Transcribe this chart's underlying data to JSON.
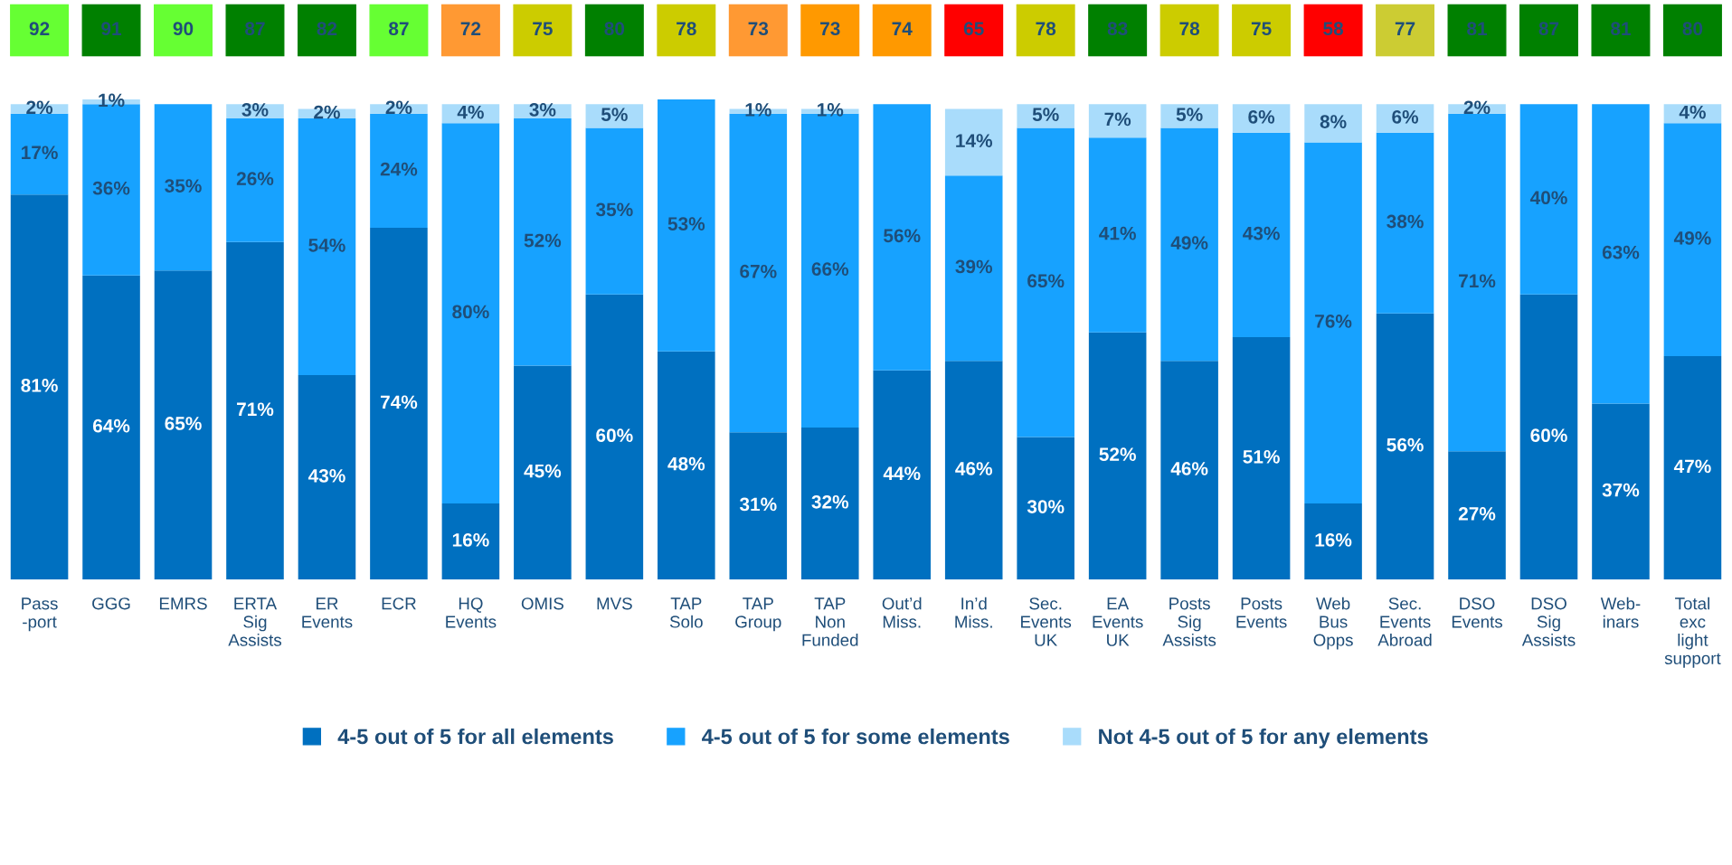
{
  "chart_data": [
    {
      "type": "other",
      "data_labels": true,
      "categories": [
        null,
        null,
        null,
        null,
        null,
        null,
        null,
        null,
        null,
        null,
        null,
        null,
        null,
        null,
        null,
        null,
        null,
        null,
        null,
        null,
        null,
        null,
        null,
        null
      ],
      "values": [
        92,
        91,
        90,
        87,
        82,
        87,
        72,
        75,
        80,
        78,
        73,
        73,
        74,
        65,
        78,
        83,
        78,
        75,
        58,
        77,
        81,
        87,
        81,
        80
      ],
      "colors": [
        "#66ff33",
        "#008000",
        "#66ff33",
        "#008000",
        "#008000",
        "#66ff33",
        "#ff9933",
        "#cccc00",
        "#008000",
        "#cccc00",
        "#ff9933",
        "#ff9900",
        "#ff9900",
        "#ff0000",
        "#cccc00",
        "#008000",
        "#cccc00",
        "#cccc00",
        "#ff0000",
        "#cccc33",
        "#008000",
        "#008000",
        "#008000",
        "#008000"
      ]
    },
    {
      "type": "bar",
      "stacked": true,
      "legend": "bottom",
      "categories": [
        "Pass\n-port",
        "GGG",
        "EMRS",
        "ERTA\nSig\nAssists",
        "ER\nEvents",
        "ECR",
        "HQ\nEvents",
        "OMIS",
        "MVS",
        "TAP\nSolo",
        "TAP\nGroup",
        "TAP\nNon\nFunded",
        "Out’d\nMiss.",
        "In’d\nMiss.",
        "Sec.\nEvents\nUK",
        "EA\nEvents\nUK",
        "Posts\nSig\nAssists",
        "Posts\nEvents",
        "Web\nBus\nOpps",
        "Sec.\nEvents\nAbroad",
        "DSO\nEvents",
        "DSO\nSig\nAssists",
        "Web-\ninars",
        "Total\nexc\nlight\nsupport"
      ],
      "series": [
        {
          "name": "4-5 out of 5 for all elements",
          "color": "#0070c0",
          "values": [
            81,
            64,
            65,
            71,
            43,
            74,
            16,
            45,
            60,
            48,
            31,
            32,
            44,
            46,
            30,
            52,
            46,
            51,
            16,
            56,
            27,
            60,
            37,
            47
          ],
          "value_labels": [
            "81%",
            "64%",
            "65%",
            "71%",
            "43%",
            "74%",
            "16%",
            "45%",
            "60%",
            "48%",
            "31%",
            "32%",
            "44%",
            "46%",
            "30%",
            "52%",
            "46%",
            "51%",
            "16%",
            "56%",
            "27%",
            "60%",
            "37%",
            "47%"
          ]
        },
        {
          "name": "4-5 out of 5 for some elements",
          "color": "#17a2ff",
          "values": [
            17,
            36,
            35,
            26,
            54,
            24,
            80,
            52,
            35,
            53,
            67,
            66,
            56,
            39,
            65,
            41,
            49,
            43,
            76,
            38,
            71,
            40,
            63,
            49
          ],
          "value_labels": [
            "17%",
            "36%",
            "35%",
            "26%",
            "54%",
            "24%",
            "80%",
            "52%",
            "35%",
            "53%",
            "67%",
            "66%",
            "56%",
            "39%",
            "65%",
            "41%",
            "49%",
            "43%",
            "76%",
            "38%",
            "71%",
            "40%",
            "63%",
            "49%"
          ]
        },
        {
          "name": "Not 4-5 out of 5 for any elements",
          "color": "#a9dcfb",
          "values": [
            2,
            1,
            null,
            3,
            2,
            2,
            4,
            3,
            5,
            null,
            1,
            1,
            null,
            14,
            5,
            7,
            5,
            6,
            8,
            6,
            2,
            null,
            null,
            4
          ],
          "value_labels": [
            "2%",
            "1%",
            null,
            "3%",
            "2%",
            "2%",
            "4%",
            "3%",
            "5%",
            null,
            "1%",
            "1%",
            null,
            "14%",
            "5%",
            "7%",
            "5%",
            "6%",
            "8%",
            "6%",
            "2%",
            null,
            null,
            "4%"
          ]
        }
      ]
    }
  ]
}
